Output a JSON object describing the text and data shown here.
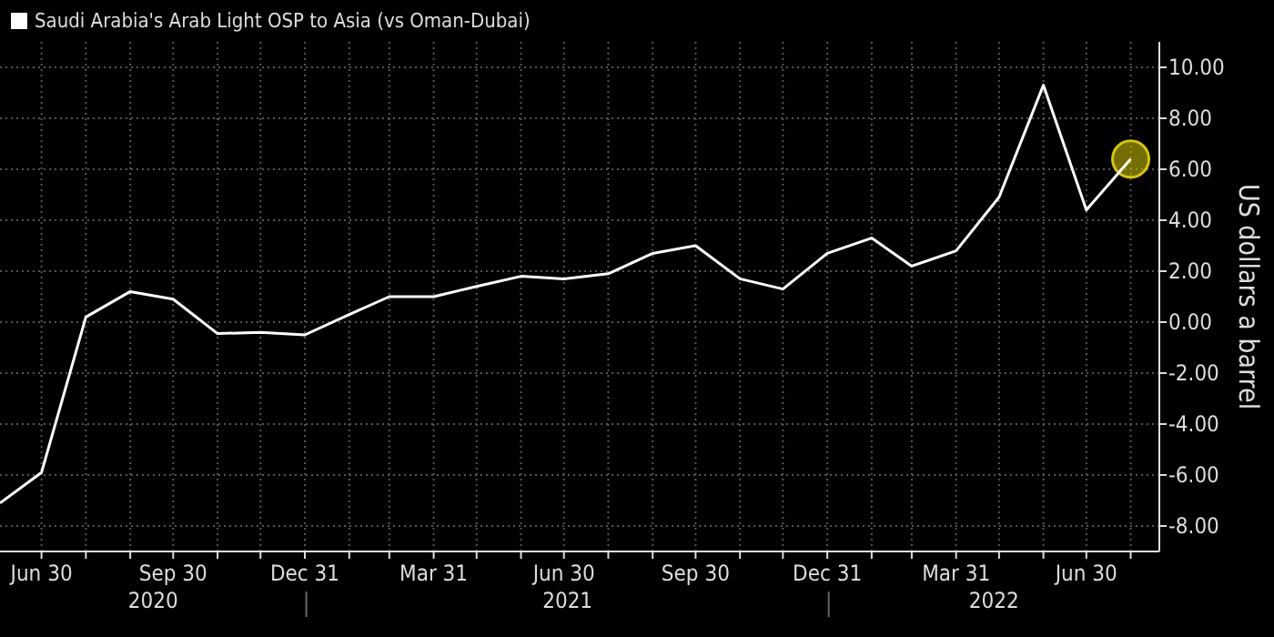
{
  "chart_data": {
    "type": "line",
    "ylabel": "US dollars a barrel",
    "xlim": [
      "2020-06-01",
      "2022-08-20"
    ],
    "ylim": [
      -9,
      11
    ],
    "xticks": [
      {
        "value": "2020-06-30",
        "label": "Jun 30"
      },
      {
        "value": "2020-07-31",
        "label": null
      },
      {
        "value": "2020-08-31",
        "label": null
      },
      {
        "value": "2020-09-30",
        "label": "Sep 30"
      },
      {
        "value": "2020-10-31",
        "label": null
      },
      {
        "value": "2020-11-30",
        "label": null
      },
      {
        "value": "2020-12-31",
        "label": "Dec 31"
      },
      {
        "value": "2021-01-31",
        "label": null
      },
      {
        "value": "2021-02-28",
        "label": null
      },
      {
        "value": "2021-03-31",
        "label": "Mar 31"
      },
      {
        "value": "2021-04-30",
        "label": null
      },
      {
        "value": "2021-05-31",
        "label": null
      },
      {
        "value": "2021-06-30",
        "label": "Jun 30"
      },
      {
        "value": "2021-07-31",
        "label": null
      },
      {
        "value": "2021-08-31",
        "label": null
      },
      {
        "value": "2021-09-30",
        "label": "Sep 30"
      },
      {
        "value": "2021-10-31",
        "label": null
      },
      {
        "value": "2021-11-30",
        "label": null
      },
      {
        "value": "2021-12-31",
        "label": "Dec 31"
      },
      {
        "value": "2022-01-31",
        "label": null
      },
      {
        "value": "2022-02-28",
        "label": null
      },
      {
        "value": "2022-03-31",
        "label": "Mar 31"
      },
      {
        "value": "2022-04-30",
        "label": null
      },
      {
        "value": "2022-05-31",
        "label": null
      },
      {
        "value": "2022-06-30",
        "label": "Jun 30"
      },
      {
        "value": "2022-07-31",
        "label": null
      }
    ],
    "yticks": [
      {
        "value": 10,
        "label": "10.00"
      },
      {
        "value": 8,
        "label": "8.00"
      },
      {
        "value": 6,
        "label": "6.00"
      },
      {
        "value": 4,
        "label": "4.00"
      },
      {
        "value": 2,
        "label": "2.00"
      },
      {
        "value": 0,
        "label": "0.00"
      },
      {
        "value": -2,
        "label": "-2.00"
      },
      {
        "value": -4,
        "label": "-4.00"
      },
      {
        "value": -6,
        "label": "-6.00"
      },
      {
        "value": -8,
        "label": "-8.00"
      }
    ],
    "grid": true,
    "legend": "top left",
    "annotations": [
      "2020",
      "2021",
      "2022"
    ],
    "series": [
      {
        "name": "Saudi Arabia's Arab Light OSP to Asia (vs Oman-Dubai)",
        "color": "#ffffff",
        "x": [
          "2020-06-01",
          "2020-06-30",
          "2020-07-31",
          "2020-08-31",
          "2020-09-30",
          "2020-10-31",
          "2020-11-30",
          "2020-12-31",
          "2021-01-31",
          "2021-02-28",
          "2021-03-31",
          "2021-04-30",
          "2021-05-31",
          "2021-06-30",
          "2021-07-31",
          "2021-08-31",
          "2021-09-30",
          "2021-10-31",
          "2021-11-30",
          "2021-12-31",
          "2022-01-31",
          "2022-02-28",
          "2022-03-31",
          "2022-04-30",
          "2022-05-31",
          "2022-06-30",
          "2022-07-31"
        ],
        "values": [
          -7.1,
          -5.9,
          0.2,
          1.2,
          0.9,
          -0.45,
          -0.4,
          -0.5,
          0.3,
          1.0,
          1.0,
          1.4,
          1.8,
          1.7,
          1.9,
          2.7,
          3.0,
          1.7,
          1.3,
          2.7,
          3.3,
          2.2,
          2.8,
          4.9,
          9.3,
          4.4,
          6.4
        ]
      },
      {
        "type": "scatter",
        "color": "#d4c800",
        "marker": "circle",
        "x": [
          "2022-07-31"
        ],
        "values": [
          6.4
        ]
      }
    ]
  }
}
